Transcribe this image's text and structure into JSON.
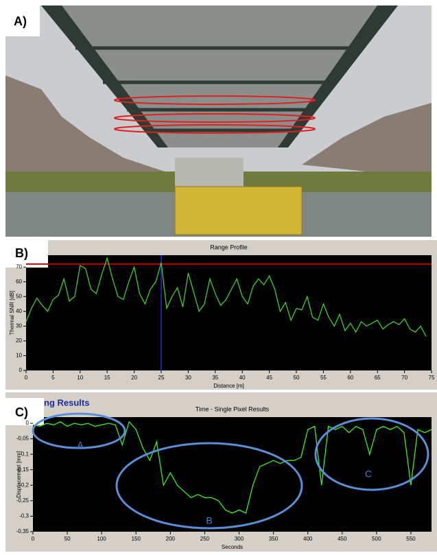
{
  "panel_labels": [
    "A)",
    "B)",
    "C)"
  ],
  "chart_data": [
    {
      "type": "line",
      "title": "Range Profile",
      "ylabel": "Thermal SNR [dB]",
      "xlabel": "Distance [m]",
      "color": "#3fcf2a",
      "x": [
        0,
        1,
        2,
        3,
        4,
        5,
        6,
        7,
        8,
        9,
        10,
        11,
        12,
        13,
        14,
        15,
        16,
        17,
        18,
        19,
        20,
        21,
        22,
        23,
        24,
        25,
        26,
        27,
        28,
        29,
        30,
        31,
        32,
        33,
        34,
        35,
        36,
        37,
        38,
        39,
        40,
        41,
        42,
        43,
        44,
        45,
        46,
        47,
        48,
        49,
        50,
        51,
        52,
        53,
        54,
        55,
        56,
        57,
        58,
        59,
        60,
        61,
        62,
        63,
        64,
        65,
        66,
        67,
        68,
        69,
        70,
        71,
        72,
        73,
        74
      ],
      "values": [
        33,
        42,
        49,
        44,
        40,
        48,
        51,
        62,
        47,
        50,
        71,
        69,
        55,
        52,
        65,
        76,
        62,
        50,
        48,
        60,
        70,
        52,
        45,
        55,
        60,
        73,
        42,
        50,
        56,
        43,
        66,
        53,
        40,
        45,
        62,
        52,
        44,
        48,
        55,
        62,
        50,
        45,
        57,
        62,
        58,
        64,
        55,
        40,
        46,
        34,
        42,
        41,
        50,
        36,
        34,
        45,
        36,
        30,
        38,
        27,
        32,
        26,
        33,
        30,
        32,
        34,
        28,
        31,
        33,
        31,
        35,
        28,
        26,
        30,
        23
      ],
      "xlim": [
        0,
        75
      ],
      "xticks": [
        0,
        5,
        10,
        15,
        20,
        25,
        30,
        35,
        40,
        45,
        50,
        55,
        60,
        65,
        70,
        75
      ],
      "ylim": [
        0,
        78
      ],
      "yticks": [
        0,
        10,
        20,
        30,
        40,
        50,
        60,
        70
      ],
      "hline": 72,
      "hline_color": "#c00000",
      "vline": 25,
      "vline_color": "#1f2fd0",
      "grid": false
    },
    {
      "type": "line",
      "header": "ng Results",
      "title": "Time - Single Pixel Results",
      "ylabel": "Displacement [mm]",
      "xlabel": "Seconds",
      "color": "#3cf01a",
      "annotations": [
        "A",
        "B",
        "C"
      ],
      "x": [
        0,
        10,
        20,
        30,
        40,
        50,
        60,
        70,
        80,
        90,
        100,
        110,
        120,
        130,
        140,
        150,
        160,
        170,
        180,
        190,
        200,
        210,
        220,
        230,
        240,
        250,
        260,
        270,
        280,
        290,
        300,
        310,
        320,
        330,
        340,
        350,
        360,
        370,
        380,
        390,
        400,
        410,
        420,
        430,
        440,
        450,
        460,
        470,
        480,
        490,
        500,
        510,
        520,
        530,
        540,
        550,
        560,
        570,
        580
      ],
      "values": [
        -0.005,
        -0.01,
        0.0,
        -0.005,
        0.005,
        -0.01,
        0.0,
        -0.005,
        0.0,
        -0.01,
        -0.005,
        0.0,
        -0.005,
        -0.07,
        0.005,
        -0.02,
        -0.08,
        -0.12,
        -0.06,
        -0.2,
        -0.16,
        -0.2,
        -0.22,
        -0.24,
        -0.23,
        -0.24,
        -0.24,
        -0.25,
        -0.28,
        -0.29,
        -0.28,
        -0.29,
        -0.2,
        -0.14,
        -0.13,
        -0.12,
        -0.13,
        -0.12,
        -0.12,
        -0.11,
        -0.02,
        -0.01,
        -0.2,
        -0.01,
        -0.02,
        -0.01,
        -0.03,
        -0.01,
        -0.02,
        -0.1,
        -0.02,
        -0.01,
        -0.02,
        -0.01,
        -0.03,
        -0.2,
        -0.02,
        -0.03,
        -0.02
      ],
      "xlim": [
        0,
        580
      ],
      "xticks": [
        0,
        50,
        100,
        150,
        200,
        250,
        300,
        350,
        400,
        450,
        500,
        550
      ],
      "ylim": [
        -0.35,
        0.02
      ],
      "yticks": [
        0,
        {
          "value": -0.05,
          "label": "-0,05"
        },
        {
          "value": -0.1,
          "label": "-0,1"
        },
        {
          "value": -0.15,
          "label": "-0,15"
        },
        {
          "value": -0.2,
          "label": "-0,2"
        },
        {
          "value": -0.25,
          "label": "-0,25"
        },
        {
          "value": -0.3,
          "label": "-0,3"
        },
        {
          "value": -0.35,
          "label": "-0,35"
        }
      ],
      "grid": false
    }
  ]
}
